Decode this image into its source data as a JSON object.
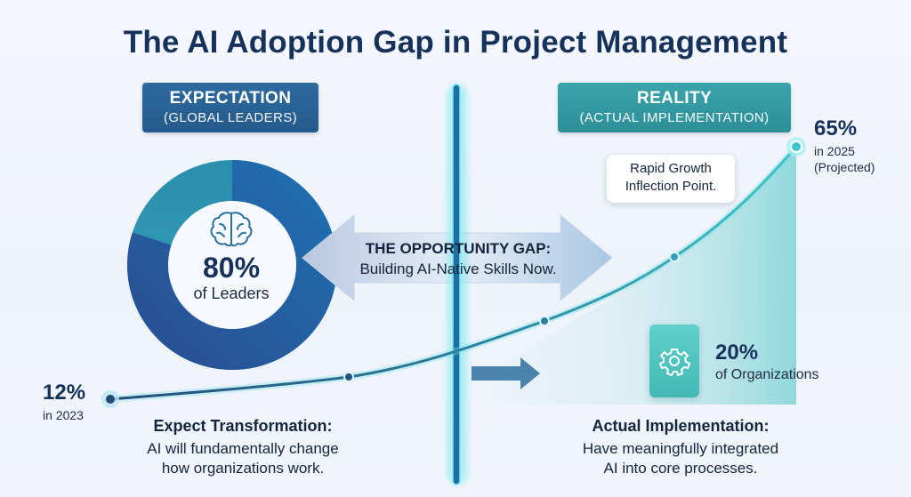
{
  "title": "The AI Adoption Gap in Project Management",
  "expectation": {
    "heading": "EXPECTATION",
    "subheading": "(GLOBAL LEADERS)",
    "value": "80%",
    "value_label": "of Leaders",
    "footer_heading": "Expect Transformation:",
    "footer_line1": "AI will fundamentally change",
    "footer_line2": "how organizations work."
  },
  "reality": {
    "heading": "REALITY",
    "subheading": "(ACTUAL IMPLEMENTATION)",
    "value": "20%",
    "value_label": "of Organizations",
    "footer_heading": "Actual Implementation:",
    "footer_line1": "Have meaningfully integrated",
    "footer_line2": "AI into core processes."
  },
  "gap": {
    "title": "THE OPPORTUNITY GAP:",
    "subtitle": "Building AI-Native Skills Now."
  },
  "curve": {
    "start_value": "12%",
    "start_label": "in 2023",
    "end_value": "65%",
    "end_label": "in 2025",
    "end_note": "(Projected)",
    "callout_line1": "Rapid Growth",
    "callout_line2": "Inflection Point."
  },
  "donut": {
    "filled_fraction": 0.8
  },
  "colors": {
    "navy": "#17325a",
    "blue": "#245a8b",
    "teal": "#2d8f98",
    "cyan_glow": "#3fd6e0"
  },
  "icons": [
    "brain-icon",
    "gear-icon",
    "arrow-right-icon",
    "double-arrow-icon"
  ]
}
